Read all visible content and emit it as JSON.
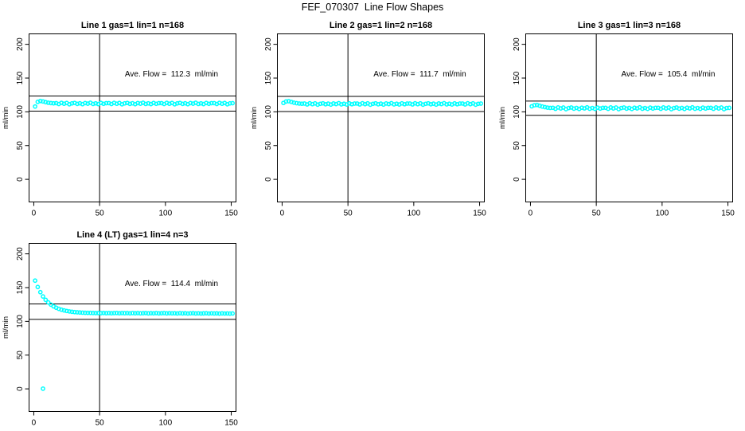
{
  "page_title": "FEF_070307  Line Flow Shapes",
  "colors": {
    "accent": "#00FFFF",
    "axis": "#000000",
    "background": "#FFFFFF"
  },
  "chart_data": [
    {
      "type": "scatter",
      "title": "Line 1 gas=1 lin=1 n=168",
      "annotation": "Ave. Flow =  112.3  ml/min",
      "ave_flow_ml_min": 112.3,
      "n": 168,
      "xlabel": "",
      "ylabel": "ml/min",
      "xticks": [
        0,
        50,
        100,
        150
      ],
      "yticks": [
        0,
        50,
        100,
        150,
        200
      ],
      "xlim": [
        -3.6,
        153.6
      ],
      "ylim": [
        -33.5,
        215.5
      ],
      "grid": false,
      "legend": false,
      "marker": "open-circle",
      "ref_vline_x": 50,
      "ref_hlines": [
        123.5,
        101.1
      ],
      "points": [
        [
          1,
          107.9
        ],
        [
          3,
          114.8
        ],
        [
          5,
          116.1
        ],
        [
          7,
          115.4
        ],
        [
          9,
          114.3
        ],
        [
          11,
          113.5
        ],
        [
          13,
          113.0
        ],
        [
          15,
          112.6
        ],
        [
          17,
          112.9
        ],
        [
          19,
          111.6
        ],
        [
          21,
          113.3
        ],
        [
          23,
          112.0
        ],
        [
          25,
          113.1
        ],
        [
          27,
          111.2
        ],
        [
          29,
          112.5
        ],
        [
          31,
          113.2
        ],
        [
          33,
          111.8
        ],
        [
          35,
          112.7
        ],
        [
          37,
          111.4
        ],
        [
          39,
          113.0
        ],
        [
          41,
          112.1
        ],
        [
          43,
          113.4
        ],
        [
          45,
          111.7
        ],
        [
          47,
          112.6
        ],
        [
          49,
          111.5
        ],
        [
          51,
          113.1
        ],
        [
          53,
          111.9
        ],
        [
          55,
          112.8
        ],
        [
          57,
          112.9
        ],
        [
          59,
          111.6
        ],
        [
          61,
          113.3
        ],
        [
          63,
          112.0
        ],
        [
          65,
          113.1
        ],
        [
          67,
          111.2
        ],
        [
          69,
          112.5
        ],
        [
          71,
          113.2
        ],
        [
          73,
          111.8
        ],
        [
          75,
          112.7
        ],
        [
          77,
          111.4
        ],
        [
          79,
          113.0
        ],
        [
          81,
          112.1
        ],
        [
          83,
          113.4
        ],
        [
          85,
          111.7
        ],
        [
          87,
          112.6
        ],
        [
          89,
          111.5
        ],
        [
          91,
          113.1
        ],
        [
          93,
          111.9
        ],
        [
          95,
          112.8
        ],
        [
          97,
          112.9
        ],
        [
          99,
          111.6
        ],
        [
          101,
          113.3
        ],
        [
          103,
          112.0
        ],
        [
          105,
          113.1
        ],
        [
          107,
          111.2
        ],
        [
          109,
          112.5
        ],
        [
          111,
          113.2
        ],
        [
          113,
          111.8
        ],
        [
          115,
          112.7
        ],
        [
          117,
          111.4
        ],
        [
          119,
          113.0
        ],
        [
          121,
          112.1
        ],
        [
          123,
          113.4
        ],
        [
          125,
          111.7
        ],
        [
          127,
          112.6
        ],
        [
          129,
          111.5
        ],
        [
          131,
          113.1
        ],
        [
          133,
          111.9
        ],
        [
          135,
          112.8
        ],
        [
          137,
          112.9
        ],
        [
          139,
          111.6
        ],
        [
          141,
          113.3
        ],
        [
          143,
          112.0
        ],
        [
          145,
          113.1
        ],
        [
          147,
          111.2
        ],
        [
          149,
          112.5
        ],
        [
          151,
          112.8
        ]
      ],
      "extra_points": []
    },
    {
      "type": "scatter",
      "title": "Line 2 gas=1 lin=2 n=168",
      "annotation": "Ave. Flow =  111.7  ml/min",
      "ave_flow_ml_min": 111.7,
      "n": 168,
      "xlabel": "",
      "ylabel": "ml/min",
      "xticks": [
        0,
        50,
        100,
        150
      ],
      "yticks": [
        0,
        50,
        100,
        150,
        200
      ],
      "xlim": [
        -3.6,
        153.6
      ],
      "ylim": [
        -33.5,
        215.5
      ],
      "grid": false,
      "legend": false,
      "marker": "open-circle",
      "ref_vline_x": 50,
      "ref_hlines": [
        122.9,
        100.5
      ],
      "points": [
        [
          1,
          113.2
        ],
        [
          3,
          115.3
        ],
        [
          5,
          115.8
        ],
        [
          7,
          114.7
        ],
        [
          9,
          113.6
        ],
        [
          11,
          112.8
        ],
        [
          13,
          112.3
        ],
        [
          15,
          112.0
        ],
        [
          17,
          112.3
        ],
        [
          19,
          111.0
        ],
        [
          21,
          112.7
        ],
        [
          23,
          111.4
        ],
        [
          25,
          112.5
        ],
        [
          27,
          110.6
        ],
        [
          29,
          111.9
        ],
        [
          31,
          112.6
        ],
        [
          33,
          111.2
        ],
        [
          35,
          112.1
        ],
        [
          37,
          110.8
        ],
        [
          39,
          112.4
        ],
        [
          41,
          111.5
        ],
        [
          43,
          112.8
        ],
        [
          45,
          111.1
        ],
        [
          47,
          112.0
        ],
        [
          49,
          110.9
        ],
        [
          51,
          112.5
        ],
        [
          53,
          111.3
        ],
        [
          55,
          112.2
        ],
        [
          57,
          112.3
        ],
        [
          59,
          111.0
        ],
        [
          61,
          112.7
        ],
        [
          63,
          111.4
        ],
        [
          65,
          112.5
        ],
        [
          67,
          110.6
        ],
        [
          69,
          111.9
        ],
        [
          71,
          112.6
        ],
        [
          73,
          111.2
        ],
        [
          75,
          112.1
        ],
        [
          77,
          110.8
        ],
        [
          79,
          112.4
        ],
        [
          81,
          111.5
        ],
        [
          83,
          112.8
        ],
        [
          85,
          111.1
        ],
        [
          87,
          112.0
        ],
        [
          89,
          110.9
        ],
        [
          91,
          112.5
        ],
        [
          93,
          111.3
        ],
        [
          95,
          112.2
        ],
        [
          97,
          112.3
        ],
        [
          99,
          111.0
        ],
        [
          101,
          112.7
        ],
        [
          103,
          111.4
        ],
        [
          105,
          112.5
        ],
        [
          107,
          110.6
        ],
        [
          109,
          111.9
        ],
        [
          111,
          112.6
        ],
        [
          113,
          111.2
        ],
        [
          115,
          112.1
        ],
        [
          117,
          110.8
        ],
        [
          119,
          112.4
        ],
        [
          121,
          111.5
        ],
        [
          123,
          112.8
        ],
        [
          125,
          111.1
        ],
        [
          127,
          112.0
        ],
        [
          129,
          110.9
        ],
        [
          131,
          112.5
        ],
        [
          133,
          111.3
        ],
        [
          135,
          112.2
        ],
        [
          137,
          112.3
        ],
        [
          139,
          111.0
        ],
        [
          141,
          112.7
        ],
        [
          143,
          111.4
        ],
        [
          145,
          112.5
        ],
        [
          147,
          110.6
        ],
        [
          149,
          111.9
        ],
        [
          151,
          112.2
        ]
      ],
      "extra_points": []
    },
    {
      "type": "scatter",
      "title": "Line 3 gas=1 lin=3 n=168",
      "annotation": "Ave. Flow =  105.4  ml/min",
      "ave_flow_ml_min": 105.4,
      "n": 168,
      "xlabel": "",
      "ylabel": "ml/min",
      "xticks": [
        0,
        50,
        100,
        150
      ],
      "yticks": [
        0,
        50,
        100,
        150,
        200
      ],
      "xlim": [
        -3.6,
        153.6
      ],
      "ylim": [
        -33.5,
        215.5
      ],
      "grid": false,
      "legend": false,
      "marker": "open-circle",
      "ref_vline_x": 50,
      "ref_hlines": [
        115.9,
        94.9
      ],
      "points": [
        [
          1,
          108.2
        ],
        [
          3,
          109.8
        ],
        [
          5,
          110.2
        ],
        [
          7,
          109.0
        ],
        [
          9,
          107.8
        ],
        [
          11,
          106.9
        ],
        [
          13,
          106.2
        ],
        [
          15,
          105.8
        ],
        [
          17,
          106.0
        ],
        [
          19,
          104.5
        ],
        [
          21,
          106.5
        ],
        [
          23,
          105.0
        ],
        [
          25,
          106.3
        ],
        [
          27,
          104.0
        ],
        [
          29,
          105.6
        ],
        [
          31,
          106.4
        ],
        [
          33,
          104.7
        ],
        [
          35,
          105.8
        ],
        [
          37,
          104.3
        ],
        [
          39,
          106.1
        ],
        [
          41,
          105.1
        ],
        [
          43,
          106.6
        ],
        [
          45,
          104.6
        ],
        [
          47,
          105.7
        ],
        [
          49,
          104.4
        ],
        [
          51,
          106.2
        ],
        [
          53,
          104.9
        ],
        [
          55,
          105.9
        ],
        [
          57,
          106.0
        ],
        [
          59,
          104.5
        ],
        [
          61,
          106.5
        ],
        [
          63,
          105.0
        ],
        [
          65,
          106.3
        ],
        [
          67,
          104.0
        ],
        [
          69,
          105.6
        ],
        [
          71,
          106.4
        ],
        [
          73,
          104.7
        ],
        [
          75,
          105.8
        ],
        [
          77,
          104.3
        ],
        [
          79,
          106.1
        ],
        [
          81,
          105.1
        ],
        [
          83,
          106.6
        ],
        [
          85,
          104.6
        ],
        [
          87,
          105.7
        ],
        [
          89,
          104.4
        ],
        [
          91,
          106.2
        ],
        [
          93,
          104.9
        ],
        [
          95,
          105.9
        ],
        [
          97,
          106.0
        ],
        [
          99,
          104.5
        ],
        [
          101,
          106.5
        ],
        [
          103,
          105.0
        ],
        [
          105,
          106.3
        ],
        [
          107,
          104.0
        ],
        [
          109,
          105.6
        ],
        [
          111,
          106.4
        ],
        [
          113,
          104.7
        ],
        [
          115,
          105.8
        ],
        [
          117,
          104.3
        ],
        [
          119,
          106.1
        ],
        [
          121,
          105.1
        ],
        [
          123,
          106.6
        ],
        [
          125,
          104.6
        ],
        [
          127,
          105.7
        ],
        [
          129,
          104.4
        ],
        [
          131,
          106.2
        ],
        [
          133,
          104.9
        ],
        [
          135,
          105.9
        ],
        [
          137,
          106.0
        ],
        [
          139,
          104.5
        ],
        [
          141,
          106.5
        ],
        [
          143,
          105.0
        ],
        [
          145,
          106.3
        ],
        [
          147,
          104.0
        ],
        [
          149,
          105.6
        ],
        [
          151,
          105.9
        ]
      ],
      "extra_points": []
    },
    {
      "type": "scatter",
      "title": "Line 4 (LT) gas=1 lin=4 n=3",
      "annotation": "Ave. Flow =  114.4  ml/min",
      "ave_flow_ml_min": 114.4,
      "n": 3,
      "xlabel": "",
      "ylabel": "ml/min",
      "xticks": [
        0,
        50,
        100,
        150
      ],
      "yticks": [
        0,
        50,
        100,
        150,
        200
      ],
      "xlim": [
        -3.6,
        153.6
      ],
      "ylim": [
        -33.5,
        215.5
      ],
      "grid": false,
      "legend": false,
      "marker": "open-circle",
      "ref_vline_x": 50,
      "ref_hlines": [
        125.8,
        103.0
      ],
      "points": [
        [
          1,
          160.3
        ],
        [
          3,
          150.9
        ],
        [
          5,
          143.2
        ],
        [
          7,
          136.9
        ],
        [
          9,
          131.9
        ],
        [
          11,
          128.0
        ],
        [
          13,
          124.8
        ],
        [
          15,
          122.2
        ],
        [
          17,
          120.2
        ],
        [
          19,
          118.6
        ],
        [
          21,
          117.3
        ],
        [
          23,
          116.2
        ],
        [
          25,
          115.4
        ],
        [
          27,
          114.7
        ],
        [
          29,
          114.2
        ],
        [
          31,
          113.7
        ],
        [
          33,
          113.4
        ],
        [
          35,
          113.1
        ],
        [
          37,
          112.9
        ],
        [
          39,
          112.7
        ],
        [
          41,
          112.6
        ],
        [
          43,
          112.5
        ],
        [
          45,
          112.4
        ],
        [
          47,
          112.3
        ],
        [
          49,
          112.3
        ],
        [
          51,
          112.2
        ],
        [
          53,
          112.4
        ],
        [
          55,
          112.1
        ],
        [
          57,
          112.3
        ],
        [
          59,
          112.0
        ],
        [
          61,
          112.2
        ],
        [
          63,
          112.4
        ],
        [
          65,
          112.0
        ],
        [
          67,
          112.3
        ],
        [
          69,
          112.1
        ],
        [
          71,
          112.2
        ],
        [
          73,
          111.9
        ],
        [
          75,
          112.3
        ],
        [
          77,
          112.0
        ],
        [
          79,
          112.2
        ],
        [
          81,
          111.9
        ],
        [
          83,
          112.1
        ],
        [
          85,
          112.3
        ],
        [
          87,
          111.8
        ],
        [
          89,
          112.1
        ],
        [
          91,
          111.9
        ],
        [
          93,
          112.2
        ],
        [
          95,
          111.8
        ],
        [
          97,
          112.0
        ],
        [
          99,
          112.2
        ],
        [
          101,
          111.8
        ],
        [
          103,
          112.1
        ],
        [
          105,
          111.9
        ],
        [
          107,
          112.0
        ],
        [
          109,
          111.7
        ],
        [
          111,
          112.1
        ],
        [
          113,
          111.8
        ],
        [
          115,
          112.0
        ],
        [
          117,
          111.6
        ],
        [
          119,
          111.9
        ],
        [
          121,
          112.1
        ],
        [
          123,
          111.7
        ],
        [
          125,
          111.9
        ],
        [
          127,
          111.6
        ],
        [
          129,
          111.8
        ],
        [
          131,
          112.0
        ],
        [
          133,
          111.6
        ],
        [
          135,
          111.9
        ],
        [
          137,
          111.7
        ],
        [
          139,
          111.8
        ],
        [
          141,
          111.5
        ],
        [
          143,
          111.8
        ],
        [
          145,
          111.6
        ],
        [
          147,
          111.7
        ],
        [
          149,
          111.5
        ],
        [
          151,
          111.7
        ]
      ],
      "extra_points": [
        [
          7,
          0.3
        ]
      ]
    }
  ]
}
